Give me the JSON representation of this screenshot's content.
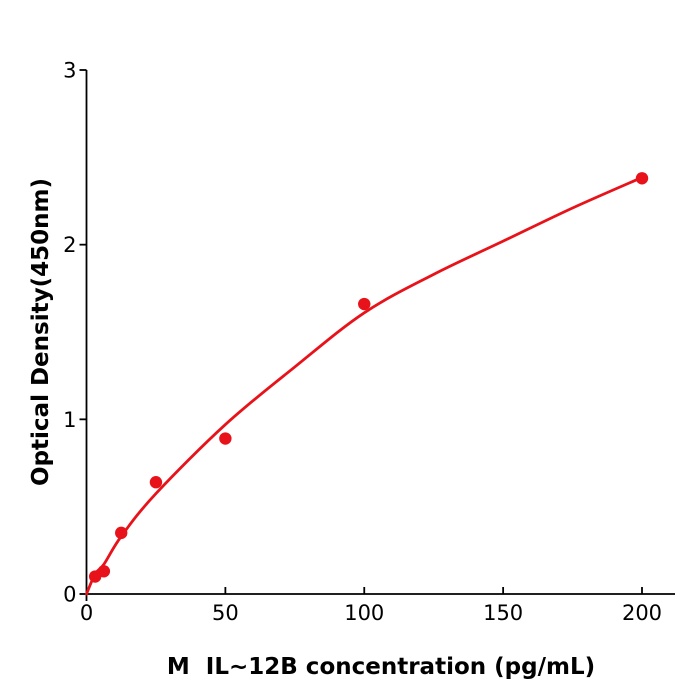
{
  "chart_data": {
    "type": "scatter",
    "title": "",
    "xlabel": "M  IL~12B concentration (pg/mL)",
    "ylabel": "Optical Density(450nm)",
    "x_ticks": [
      0,
      50,
      100,
      150,
      200
    ],
    "y_ticks": [
      0,
      1,
      2,
      3
    ],
    "xlim": [
      0,
      212
    ],
    "ylim": [
      0,
      3
    ],
    "grid": false,
    "legend": "none",
    "points": [
      {
        "x": 3.125,
        "y": 0.1
      },
      {
        "x": 6.25,
        "y": 0.13
      },
      {
        "x": 12.5,
        "y": 0.35
      },
      {
        "x": 25,
        "y": 0.64
      },
      {
        "x": 50,
        "y": 0.89
      },
      {
        "x": 100,
        "y": 1.66
      },
      {
        "x": 200,
        "y": 2.38
      }
    ],
    "curve": [
      [
        0,
        0
      ],
      [
        3.125,
        0.115
      ],
      [
        6.25,
        0.17
      ],
      [
        12.5,
        0.33
      ],
      [
        25,
        0.575
      ],
      [
        50,
        0.97
      ],
      [
        75,
        1.3
      ],
      [
        100,
        1.61
      ],
      [
        125,
        1.83
      ],
      [
        150,
        2.02
      ],
      [
        175,
        2.21
      ],
      [
        200,
        2.385
      ]
    ],
    "colors": {
      "series": "#e8131a",
      "axis": "#000000",
      "background": "#ffffff"
    }
  }
}
